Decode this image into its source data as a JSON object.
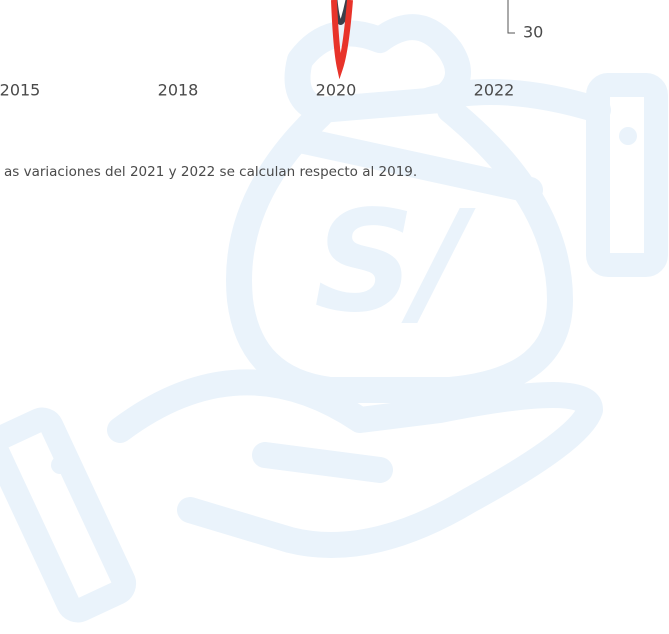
{
  "axis": {
    "x_labels": [
      "2015",
      "2018",
      "2020",
      "2022"
    ],
    "y_label": "30"
  },
  "note": "as variaciones del 2021 y 2022 se calculan respecto al 2019."
}
